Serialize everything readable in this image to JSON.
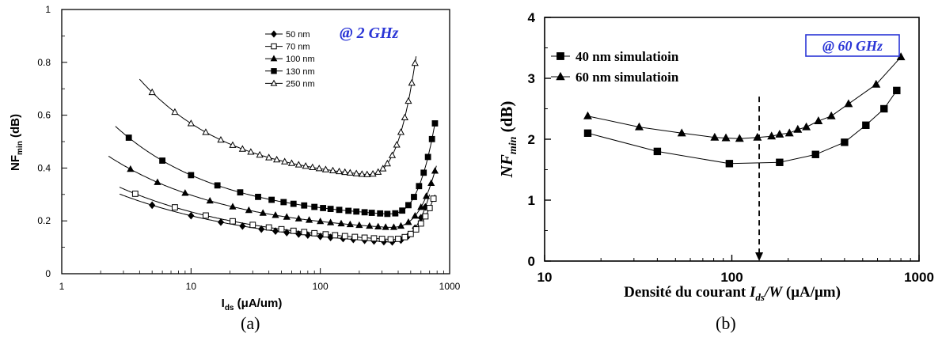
{
  "chart_data": [
    {
      "type": "line",
      "caption": "(a)",
      "ylabel_main": "NF",
      "ylabel_sub": "min",
      "ylabel_unit": " (dB)",
      "xlabel_main": "I",
      "xlabel_sub": "ds",
      "xlabel_unit": " (μA/um)",
      "x_scale": "log",
      "xlim": [
        1,
        1000
      ],
      "ylim": [
        0,
        1
      ],
      "xticks": [
        1,
        10,
        100,
        1000
      ],
      "xtick_labels": [
        "1",
        "10",
        "100",
        "1000"
      ],
      "yticks": [
        0,
        0.2,
        0.4,
        0.6,
        0.8,
        1
      ],
      "ytick_labels": [
        "0",
        "0.2",
        "0.4",
        "0.6",
        "0.8",
        "1"
      ],
      "annotation": "@ 2 GHz",
      "legend_position": "top-right",
      "series": [
        {
          "name": "50 nm",
          "marker": "diamond-filled",
          "curve_a": 0.32,
          "curve_b": 0.37,
          "curve_c": 0.083,
          "x_start": 2.8,
          "x_end": 700,
          "markers_x": [
            5,
            10,
            17,
            25,
            35,
            45,
            55,
            68,
            80,
            100,
            120,
            150,
            180,
            220,
            260,
            310,
            360,
            420,
            480,
            540,
            600,
            650
          ]
        },
        {
          "name": "70 nm",
          "marker": "square-open",
          "curve_a": 0.35,
          "curve_b": 0.41,
          "curve_c": 0.098,
          "x_start": 2.8,
          "x_end": 770,
          "markers_x": [
            3.7,
            7.5,
            13,
            21,
            30,
            40,
            50,
            62,
            75,
            90,
            110,
            130,
            155,
            185,
            220,
            260,
            300,
            350,
            400,
            450,
            500,
            550,
            600,
            650,
            700,
            750
          ]
        },
        {
          "name": "100 nm",
          "marker": "triangle-filled",
          "curve_a": 0.44,
          "curve_b": 0.46,
          "curve_c": 0.145,
          "x_start": 2.3,
          "x_end": 790,
          "markers_x": [
            3.4,
            5.5,
            9,
            14,
            21,
            28,
            36,
            45,
            55,
            68,
            82,
            100,
            120,
            145,
            170,
            200,
            240,
            280,
            320,
            370,
            420,
            480,
            540,
            600,
            660,
            720,
            770
          ]
        },
        {
          "name": "130 nm",
          "marker": "square-filled",
          "curve_a": 0.6,
          "curve_b": 0.54,
          "curve_c": 0.2,
          "x_start": 2.6,
          "x_end": 770,
          "markers_x": [
            3.3,
            6,
            10,
            16,
            24,
            33,
            42,
            52,
            62,
            75,
            90,
            105,
            120,
            140,
            165,
            190,
            220,
            250,
            290,
            330,
            380,
            430,
            480,
            530,
            580,
            630,
            680,
            730,
            770
          ]
        },
        {
          "name": "250 nm",
          "marker": "triangle-open",
          "curve_a": 0.91,
          "curve_b": 0.6,
          "curve_c": 0.34,
          "x_start": 4,
          "x_end": 550,
          "markers_x": [
            5,
            7.5,
            10,
            13,
            17,
            21,
            25,
            29,
            34,
            40,
            46,
            53,
            60,
            68,
            77,
            87,
            98,
            110,
            125,
            140,
            155,
            170,
            190,
            210,
            230,
            255,
            280,
            305,
            330,
            360,
            390,
            420,
            450,
            480,
            510,
            540
          ],
          "rise_start": 200,
          "rise_end": 550,
          "rise_to": 0.84
        }
      ]
    },
    {
      "type": "line",
      "caption": "(b)",
      "ylabel_main": "NF",
      "ylabel_sub": "min",
      "ylabel_unit": " (dB)",
      "xlabel_prefix": "Densité du courant ",
      "xlabel_main": "I",
      "xlabel_sub": "ds",
      "xlabel_mid": "/W",
      "xlabel_unit": " (μA/μm)",
      "x_scale": "log",
      "xlim": [
        10,
        1000
      ],
      "ylim": [
        0,
        4
      ],
      "xticks": [
        10,
        100,
        1000
      ],
      "xtick_labels": [
        "10",
        "100",
        "1000"
      ],
      "yticks": [
        0,
        1,
        2,
        3,
        4
      ],
      "ytick_labels": [
        "0",
        "1",
        "2",
        "3",
        "4"
      ],
      "annotation": "@ 60 GHz",
      "dashed_line_x": 140,
      "legend_position": "top-left",
      "series": [
        {
          "name": "40 nm simulatioin",
          "marker": "square-filled",
          "x": [
            17,
            40,
            97,
            180,
            280,
            400,
            520,
            650,
            760
          ],
          "y": [
            2.1,
            1.8,
            1.6,
            1.62,
            1.75,
            1.95,
            2.23,
            2.5,
            2.8
          ]
        },
        {
          "name": "60 nm simulatioin",
          "marker": "triangle-filled",
          "x": [
            17,
            32,
            54,
            81,
            93,
            110,
            137,
            163,
            180,
            203,
            225,
            250,
            290,
            340,
            420,
            590,
            800
          ],
          "y": [
            2.38,
            2.2,
            2.1,
            2.03,
            2.02,
            2.01,
            2.03,
            2.05,
            2.08,
            2.1,
            2.16,
            2.2,
            2.3,
            2.38,
            2.58,
            2.9,
            3.35
          ]
        }
      ]
    }
  ]
}
